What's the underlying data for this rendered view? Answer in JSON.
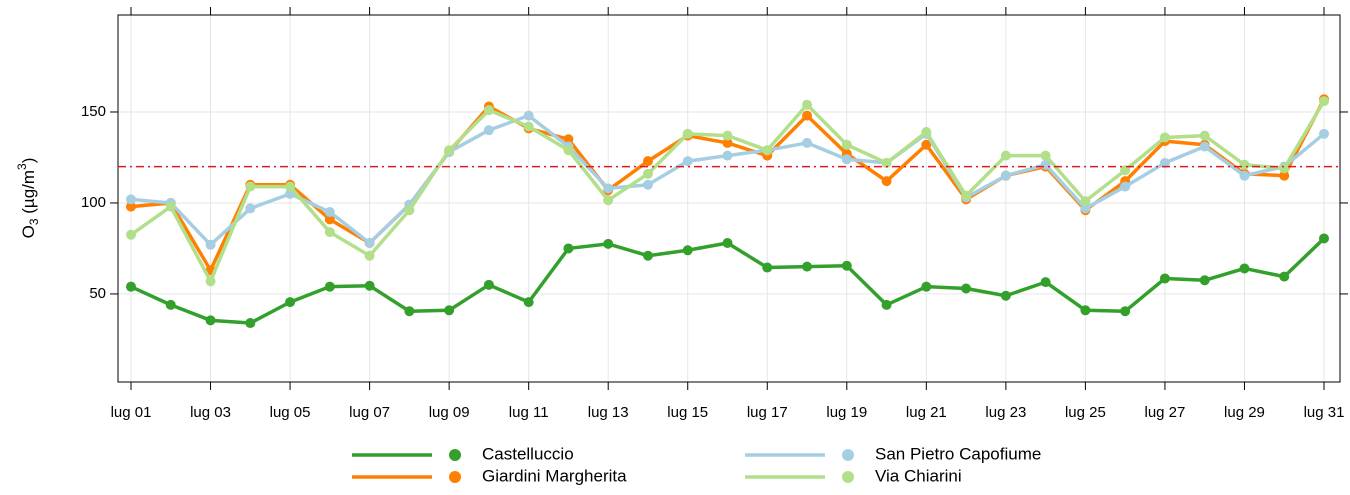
{
  "chart_data": {
    "type": "line",
    "ylabel": {
      "main": "O",
      "sub": "3",
      "unit": " (µg/m",
      "sup": "3",
      "end": ")"
    },
    "categories": [
      "lug 01",
      null,
      "lug 03",
      null,
      "lug 05",
      null,
      "lug 07",
      null,
      "lug 09",
      null,
      "lug 11",
      null,
      "lug 13",
      null,
      "lug 15",
      null,
      "lug 17",
      null,
      "lug 19",
      null,
      "lug 21",
      null,
      "lug 23",
      null,
      "lug 25",
      null,
      "lug 27",
      null,
      "lug 29",
      null,
      "lug 31"
    ],
    "series": [
      {
        "name": "Castelluccio",
        "color": "#33a02c",
        "values": [
          54,
          44,
          35.5,
          34,
          45.5,
          54,
          54.5,
          40.5,
          41,
          55,
          45.5,
          75,
          77.5,
          71,
          74,
          78,
          64.5,
          65,
          65.5,
          44,
          54,
          53,
          49,
          56.5,
          41,
          40.5,
          58.5,
          57.5,
          64,
          59.5,
          80.5
        ]
      },
      {
        "name": "Giardini Margherita",
        "color": "#ff7f00",
        "values": [
          98,
          100,
          63,
          110,
          110,
          91,
          78,
          99,
          128,
          153,
          141,
          135,
          107,
          123,
          137,
          133,
          126,
          148,
          127,
          112,
          132,
          102,
          115,
          120,
          96,
          112,
          134,
          132,
          116,
          115,
          157
        ]
      },
      {
        "name": "San Pietro Capofiume",
        "color": "#a6cee3",
        "values": [
          102,
          100,
          77,
          97,
          105,
          95,
          78,
          99,
          128,
          140,
          148,
          131,
          108,
          110,
          123,
          126,
          129,
          133,
          124,
          122,
          138,
          103,
          115,
          121,
          97,
          109,
          122,
          131,
          115,
          120,
          138
        ]
      },
      {
        "name": "Via Chiarini",
        "color": "#b2df8a",
        "values": [
          82.5,
          98,
          57,
          109,
          109,
          84,
          71,
          96,
          129,
          151,
          142,
          129,
          101.5,
          116,
          138,
          137,
          129,
          154,
          132,
          122,
          139,
          104,
          126,
          126,
          101,
          118,
          136,
          137,
          121,
          119,
          156
        ]
      }
    ],
    "threshold": 120,
    "threshold_color": "#e31a1c",
    "ylim": [
      1.6,
      203.3
    ],
    "yticks": [
      50,
      100,
      150
    ],
    "grid": true
  }
}
